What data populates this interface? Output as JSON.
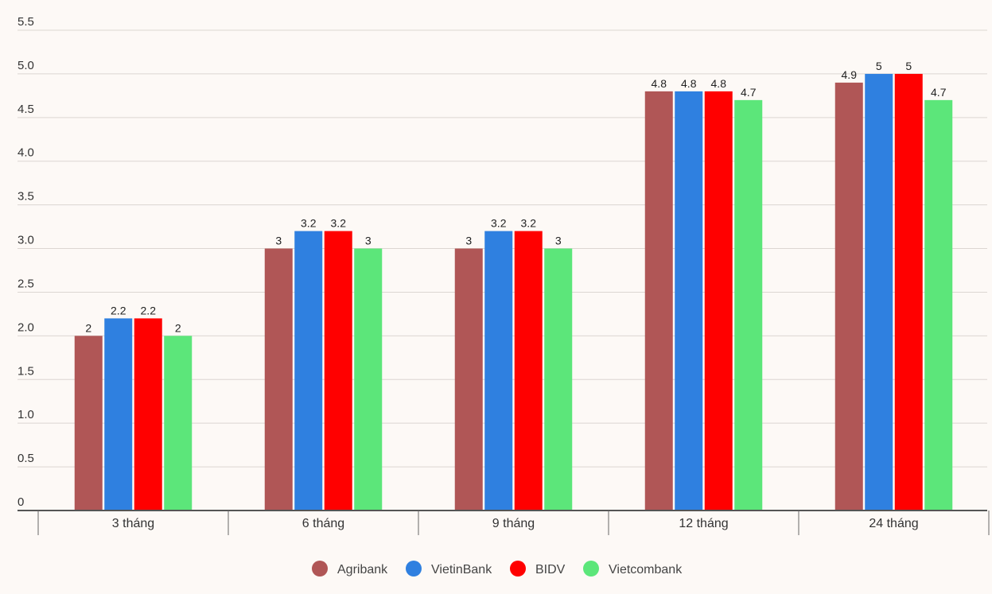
{
  "chart_data": {
    "type": "bar",
    "title": "",
    "xlabel": "",
    "ylabel": "",
    "categories": [
      "3 tháng",
      "6 tháng",
      "9 tháng",
      "12 tháng",
      "24 tháng"
    ],
    "series": [
      {
        "name": "Agribank",
        "color": "#b05656",
        "values": [
          2,
          3,
          3,
          4.8,
          4.9
        ],
        "labels": [
          "2",
          "3",
          "3",
          "4.8",
          "4.9"
        ]
      },
      {
        "name": "VietinBank",
        "color": "#2f80e0",
        "values": [
          2.2,
          3.2,
          3.2,
          4.8,
          5
        ],
        "labels": [
          "2.2",
          "3.2",
          "3.2",
          "4.8",
          "5"
        ]
      },
      {
        "name": "BIDV",
        "color": "#ff0000",
        "values": [
          2.2,
          3.2,
          3.2,
          4.8,
          5
        ],
        "labels": [
          "2.2",
          "3.2",
          "3.2",
          "4.8",
          "5"
        ]
      },
      {
        "name": "Vietcombank",
        "color": "#5ce67a",
        "values": [
          2,
          3,
          3,
          4.7,
          4.7
        ],
        "labels": [
          "2",
          "3",
          "3",
          "4.7",
          "4.7"
        ]
      }
    ],
    "ylim": [
      0,
      5.5
    ],
    "yticks": [
      "0",
      "0.5",
      "1.0",
      "1.5",
      "2.0",
      "2.5",
      "3.0",
      "3.5",
      "4.0",
      "4.5",
      "5.0",
      "5.5"
    ],
    "ytick_values": [
      0,
      0.5,
      1,
      1.5,
      2,
      2.5,
      3,
      3.5,
      4,
      4.5,
      5,
      5.5
    ],
    "grid": true,
    "legend_position": "bottom-center"
  }
}
